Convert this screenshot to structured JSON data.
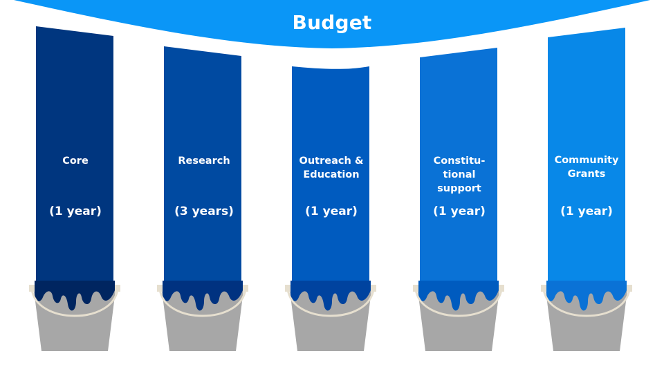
{
  "title": "Budget",
  "colors": {
    "banner": "#0a96f7",
    "bucket": "#a7a7a7",
    "bucket_handle": "#e6dfcf",
    "columns": [
      "#00367f",
      "#004aa1",
      "#005bbf",
      "#0a72d6",
      "#0888e8"
    ],
    "paint_pool": [
      "#002560",
      "#003280",
      "#00439f",
      "#005bbf",
      "#0a72d6"
    ]
  },
  "columns": [
    {
      "name": "Core",
      "duration": "(1 year)",
      "icon": "paint-bucket-icon"
    },
    {
      "name": "Research",
      "duration": "(3 years)",
      "icon": "paint-bucket-icon"
    },
    {
      "name": "Outreach & Education",
      "duration": "(1 year)",
      "icon": "paint-bucket-icon"
    },
    {
      "name": "Constitu-\ntional\nsupport",
      "duration": "(1 year)",
      "icon": "paint-bucket-icon"
    },
    {
      "name": "Community Grants",
      "duration": "(1 year)",
      "icon": "paint-bucket-icon"
    }
  ]
}
